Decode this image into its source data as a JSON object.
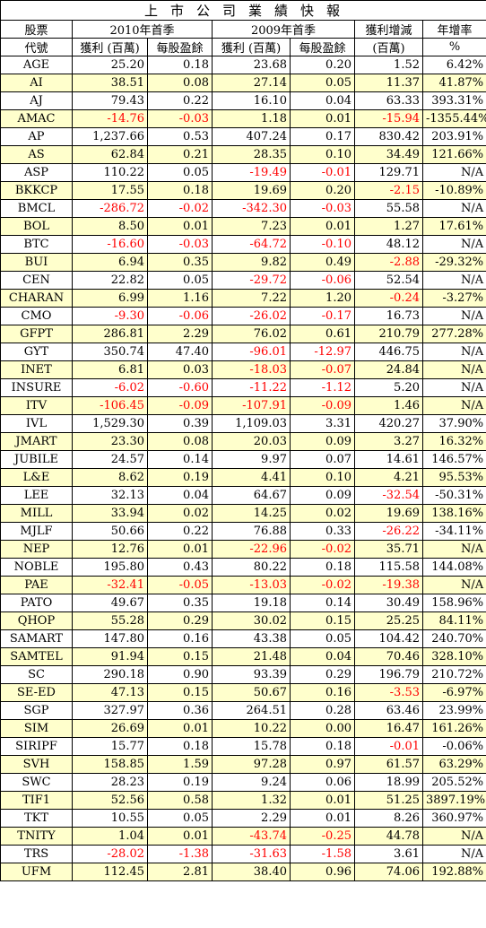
{
  "title": "上市公司業績快報",
  "headers": {
    "stock": "股票",
    "code": "代號",
    "q2010": "2010年首季",
    "q2009": "2009年首季",
    "change": "獲利增減",
    "growth": "年增率",
    "profit": "獲利 (百萬)",
    "eps": "每股盈餘",
    "change_unit": "(百萬)",
    "growth_unit": "%"
  },
  "rows": [
    [
      "AGE",
      "25.20",
      "0.18",
      "23.68",
      "0.20",
      "1.52",
      "6.42%"
    ],
    [
      "AI",
      "38.51",
      "0.08",
      "27.14",
      "0.05",
      "11.37",
      "41.87%"
    ],
    [
      "AJ",
      "79.43",
      "0.22",
      "16.10",
      "0.04",
      "63.33",
      "393.31%"
    ],
    [
      "AMAC",
      "-14.76",
      "-0.03",
      "1.18",
      "0.01",
      "-15.94",
      "-1355.44%"
    ],
    [
      "AP",
      "1,237.66",
      "0.53",
      "407.24",
      "0.17",
      "830.42",
      "203.91%"
    ],
    [
      "AS",
      "62.84",
      "0.21",
      "28.35",
      "0.10",
      "34.49",
      "121.66%"
    ],
    [
      "ASP",
      "110.22",
      "0.05",
      "-19.49",
      "-0.01",
      "129.71",
      "N/A"
    ],
    [
      "BKKCP",
      "17.55",
      "0.18",
      "19.69",
      "0.20",
      "-2.15",
      "-10.89%"
    ],
    [
      "BMCL",
      "-286.72",
      "-0.02",
      "-342.30",
      "-0.03",
      "55.58",
      "N/A"
    ],
    [
      "BOL",
      "8.50",
      "0.01",
      "7.23",
      "0.01",
      "1.27",
      "17.61%"
    ],
    [
      "BTC",
      "-16.60",
      "-0.03",
      "-64.72",
      "-0.10",
      "48.12",
      "N/A"
    ],
    [
      "BUI",
      "6.94",
      "0.35",
      "9.82",
      "0.49",
      "-2.88",
      "-29.32%"
    ],
    [
      "CEN",
      "22.82",
      "0.05",
      "-29.72",
      "-0.06",
      "52.54",
      "N/A"
    ],
    [
      "CHARAN",
      "6.99",
      "1.16",
      "7.22",
      "1.20",
      "-0.24",
      "-3.27%"
    ],
    [
      "CMO",
      "-9.30",
      "-0.06",
      "-26.02",
      "-0.17",
      "16.73",
      "N/A"
    ],
    [
      "GFPT",
      "286.81",
      "2.29",
      "76.02",
      "0.61",
      "210.79",
      "277.28%"
    ],
    [
      "GYT",
      "350.74",
      "47.40",
      "-96.01",
      "-12.97",
      "446.75",
      "N/A"
    ],
    [
      "INET",
      "6.81",
      "0.03",
      "-18.03",
      "-0.07",
      "24.84",
      "N/A"
    ],
    [
      "INSURE",
      "-6.02",
      "-0.60",
      "-11.22",
      "-1.12",
      "5.20",
      "N/A"
    ],
    [
      "ITV",
      "-106.45",
      "-0.09",
      "-107.91",
      "-0.09",
      "1.46",
      "N/A"
    ],
    [
      "IVL",
      "1,529.30",
      "0.39",
      "1,109.03",
      "3.31",
      "420.27",
      "37.90%"
    ],
    [
      "JMART",
      "23.30",
      "0.08",
      "20.03",
      "0.09",
      "3.27",
      "16.32%"
    ],
    [
      "JUBILE",
      "24.57",
      "0.14",
      "9.97",
      "0.07",
      "14.61",
      "146.57%"
    ],
    [
      "L&E",
      "8.62",
      "0.19",
      "4.41",
      "0.10",
      "4.21",
      "95.53%"
    ],
    [
      "LEE",
      "32.13",
      "0.04",
      "64.67",
      "0.09",
      "-32.54",
      "-50.31%"
    ],
    [
      "MILL",
      "33.94",
      "0.02",
      "14.25",
      "0.02",
      "19.69",
      "138.16%"
    ],
    [
      "MJLF",
      "50.66",
      "0.22",
      "76.88",
      "0.33",
      "-26.22",
      "-34.11%"
    ],
    [
      "NEP",
      "12.76",
      "0.01",
      "-22.96",
      "-0.02",
      "35.71",
      "N/A"
    ],
    [
      "NOBLE",
      "195.80",
      "0.43",
      "80.22",
      "0.18",
      "115.58",
      "144.08%"
    ],
    [
      "PAE",
      "-32.41",
      "-0.05",
      "-13.03",
      "-0.02",
      "-19.38",
      "N/A"
    ],
    [
      "PATO",
      "49.67",
      "0.35",
      "19.18",
      "0.14",
      "30.49",
      "158.96%"
    ],
    [
      "QHOP",
      "55.28",
      "0.29",
      "30.02",
      "0.15",
      "25.25",
      "84.11%"
    ],
    [
      "SAMART",
      "147.80",
      "0.16",
      "43.38",
      "0.05",
      "104.42",
      "240.70%"
    ],
    [
      "SAMTEL",
      "91.94",
      "0.15",
      "21.48",
      "0.04",
      "70.46",
      "328.10%"
    ],
    [
      "SC",
      "290.18",
      "0.90",
      "93.39",
      "0.29",
      "196.79",
      "210.72%"
    ],
    [
      "SE-ED",
      "47.13",
      "0.15",
      "50.67",
      "0.16",
      "-3.53",
      "-6.97%"
    ],
    [
      "SGP",
      "327.97",
      "0.36",
      "264.51",
      "0.28",
      "63.46",
      "23.99%"
    ],
    [
      "SIM",
      "26.69",
      "0.01",
      "10.22",
      "0.00",
      "16.47",
      "161.26%"
    ],
    [
      "SIRIPF",
      "15.77",
      "0.18",
      "15.78",
      "0.18",
      "-0.01",
      "-0.06%"
    ],
    [
      "SVH",
      "158.85",
      "1.59",
      "97.28",
      "0.97",
      "61.57",
      "63.29%"
    ],
    [
      "SWC",
      "28.23",
      "0.19",
      "9.24",
      "0.06",
      "18.99",
      "205.52%"
    ],
    [
      "TIF1",
      "52.56",
      "0.58",
      "1.32",
      "0.01",
      "51.25",
      "3897.19%"
    ],
    [
      "TKT",
      "10.55",
      "0.05",
      "2.29",
      "0.01",
      "8.26",
      "360.97%"
    ],
    [
      "TNITY",
      "1.04",
      "0.01",
      "-43.74",
      "-0.25",
      "44.78",
      "N/A"
    ],
    [
      "TRS",
      "-28.02",
      "-1.38",
      "-31.63",
      "-1.58",
      "3.61",
      "N/A"
    ],
    [
      "UFM",
      "112.45",
      "2.81",
      "38.40",
      "0.96",
      "74.06",
      "192.88%"
    ]
  ],
  "colors": {
    "negative": "#ff0000",
    "stripe": "#ffffcc",
    "border": "#000000"
  }
}
